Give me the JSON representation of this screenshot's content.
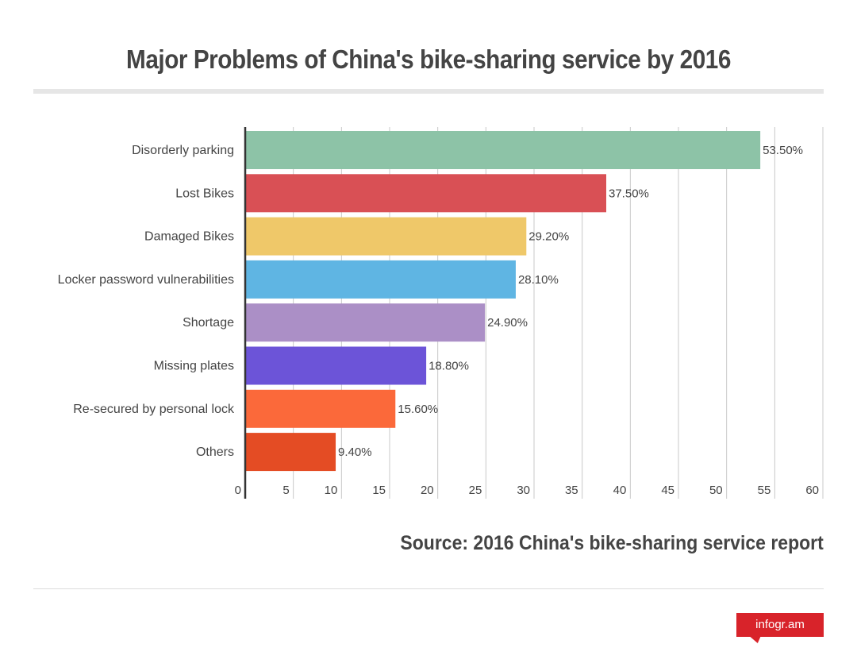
{
  "chart_data": {
    "type": "bar",
    "orientation": "horizontal",
    "title": "Major Problems of China's bike-sharing service by 2016",
    "categories": [
      "Disorderly parking",
      "Lost Bikes",
      "Damaged Bikes",
      "Locker password vulnerabilities",
      "Shortage",
      "Missing plates",
      "Re-secured by personal lock",
      "Others"
    ],
    "values": [
      53.5,
      37.5,
      29.2,
      28.1,
      24.9,
      18.8,
      15.6,
      9.4
    ],
    "data_labels": [
      "53.50%",
      "37.50%",
      "29.20%",
      "28.10%",
      "24.90%",
      "18.80%",
      "15.60%",
      "9.40%"
    ],
    "colors": [
      "#8dc3a7",
      "#d95055",
      "#efc869",
      "#5fb5e3",
      "#ab8fc6",
      "#6c54d8",
      "#fb693a",
      "#e44c24"
    ],
    "xlim": [
      0,
      60
    ],
    "xticks": [
      0,
      5,
      10,
      15,
      20,
      25,
      30,
      35,
      40,
      45,
      50,
      55,
      60
    ],
    "grid": true,
    "xlabel": "",
    "ylabel": ""
  },
  "source": "Source: 2016 China's bike-sharing service report",
  "logo": "infogr.am"
}
